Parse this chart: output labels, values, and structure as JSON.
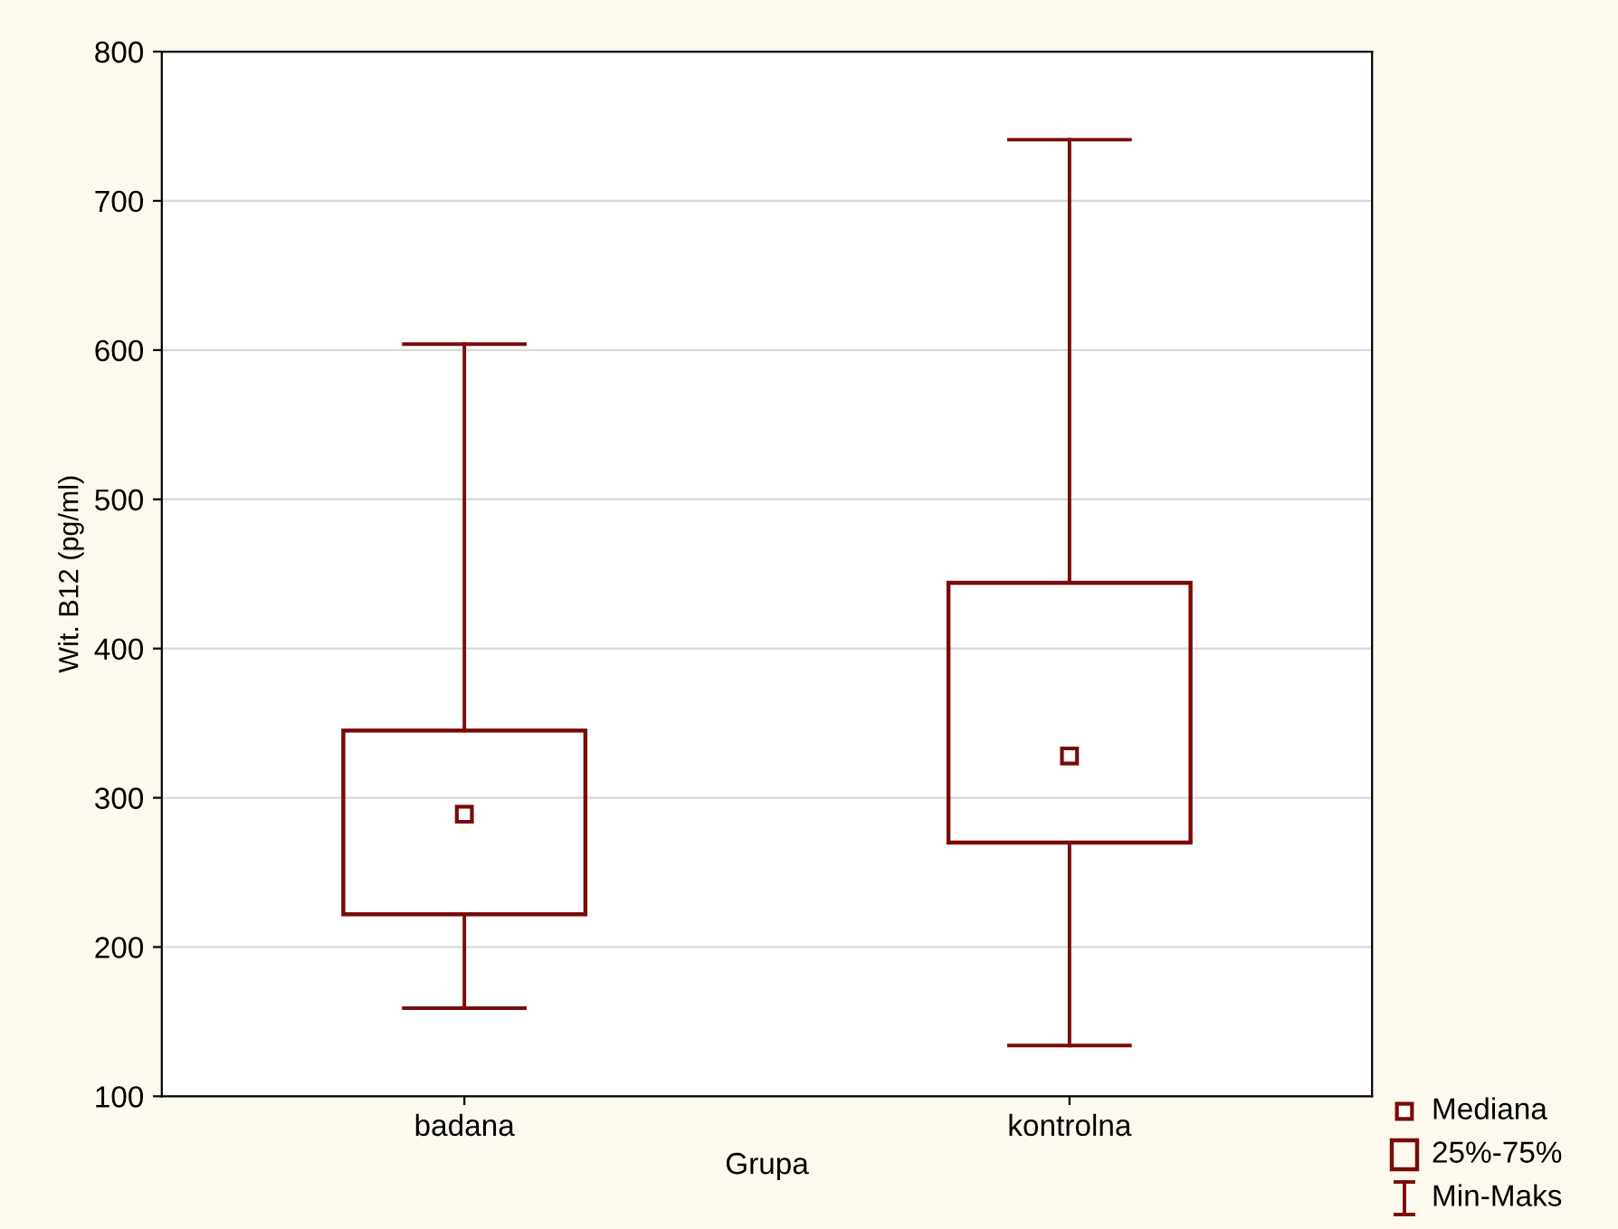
{
  "chart_data": {
    "type": "box",
    "xlabel": "Grupa",
    "ylabel": "Wit. B12 (pg/ml)",
    "categories": [
      "badana",
      "kontrolna"
    ],
    "boxes": [
      {
        "low": 159,
        "q1": 222,
        "median": 289,
        "q3": 345,
        "high": 604
      },
      {
        "low": 134,
        "q1": 270,
        "median": 328,
        "q3": 444,
        "high": 741
      }
    ],
    "color": "#7a0a0a",
    "ylim": [
      100,
      800
    ],
    "yticks": [
      100,
      200,
      300,
      400,
      500,
      600,
      700,
      800
    ],
    "grid": "y",
    "marker": "square",
    "annotations": [
      "Mediana",
      "25%-75%",
      "Min-Maks"
    ]
  }
}
